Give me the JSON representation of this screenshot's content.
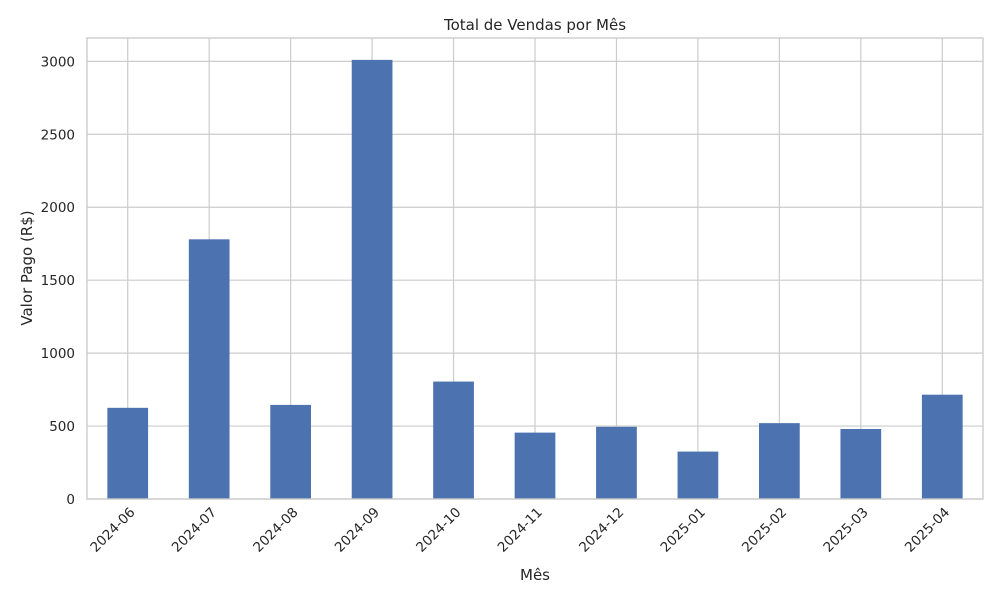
{
  "chart_data": {
    "type": "bar",
    "title": "Total de Vendas por Mês",
    "xlabel": "Mês",
    "ylabel": "Valor Pago (R$)",
    "categories": [
      "2024-06",
      "2024-07",
      "2024-08",
      "2024-09",
      "2024-10",
      "2024-11",
      "2024-12",
      "2025-01",
      "2025-02",
      "2025-03",
      "2025-04"
    ],
    "values": [
      625,
      1780,
      645,
      3010,
      805,
      455,
      495,
      325,
      520,
      480,
      715
    ],
    "ylim": [
      0,
      3160
    ],
    "yticks": [
      0,
      500,
      1000,
      1500,
      2000,
      2500,
      3000
    ],
    "ytick_labels": [
      "0",
      "500",
      "1000",
      "1500",
      "2000",
      "2500",
      "3000"
    ],
    "grid": true,
    "bar_color": "#4c72b0"
  }
}
